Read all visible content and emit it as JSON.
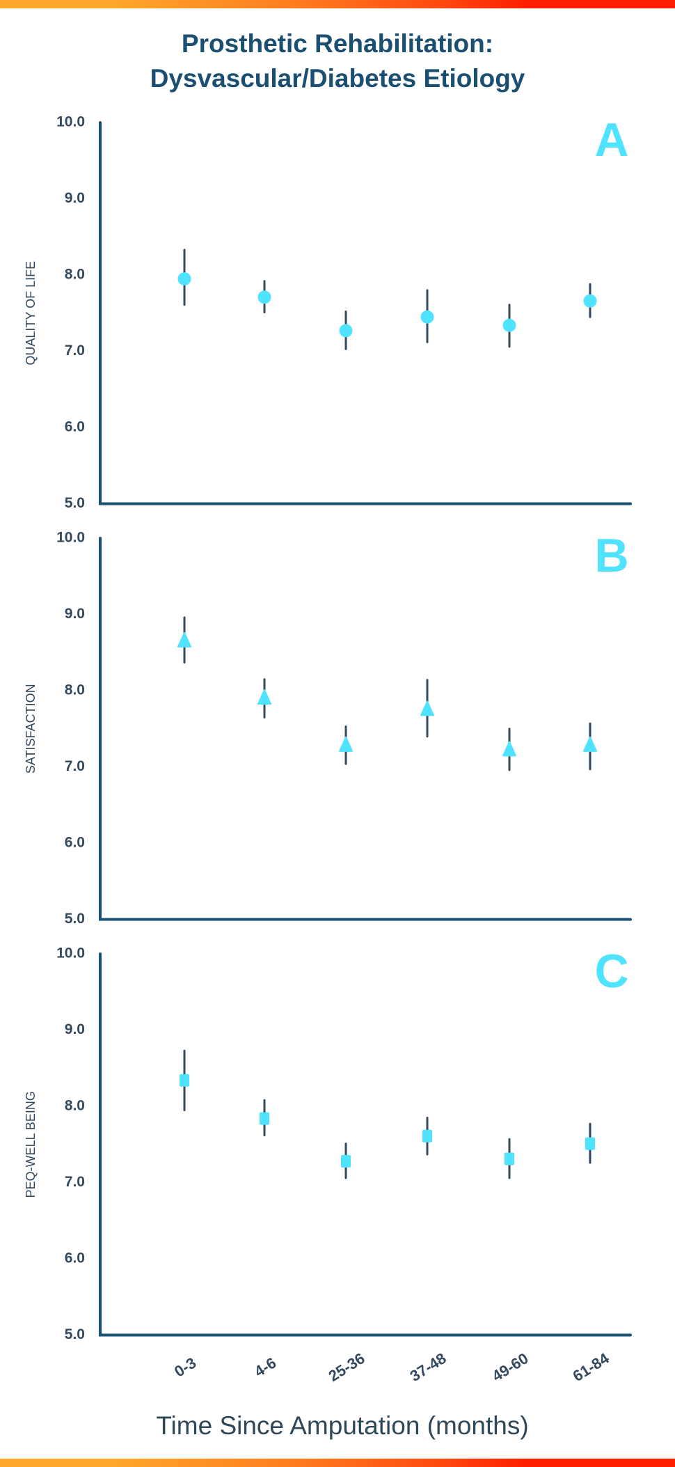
{
  "title": {
    "line1": "Prosthetic Rehabilitation:",
    "line2": "Dysvascular/Diabetes Etiology"
  },
  "colors": {
    "title": "#1b4f72",
    "axis": "#1a5276",
    "tick_label": "#34495e",
    "error_bar": "#34495e",
    "marker": "#50e3ff",
    "panel_letter": "#50e3ff",
    "bar_gradient_start": "#ffa62b",
    "bar_gradient_end": "#ff1e00"
  },
  "x_axis": {
    "title": "Time Since Amputation (months)",
    "categories": [
      "0-3",
      "4-6",
      "25-36",
      "37-48",
      "49-60",
      "61-84"
    ]
  },
  "chart_data": [
    {
      "type": "scatter",
      "panel": "A",
      "title": "",
      "ylabel": "QUALITY OF LIFE",
      "xlabel": "Time Since Amputation (months)",
      "marker": "circle",
      "categories": [
        "0-3",
        "4-6",
        "25-36",
        "37-48",
        "49-60",
        "61-84"
      ],
      "values": [
        7.95,
        7.71,
        7.27,
        7.45,
        7.34,
        7.66
      ],
      "error_low": [
        7.61,
        7.51,
        7.03,
        7.12,
        7.06,
        7.45
      ],
      "error_high": [
        8.33,
        7.92,
        7.52,
        7.8,
        7.61,
        7.88
      ],
      "ylim": [
        5.0,
        10.0
      ],
      "yticks": [
        "5.0",
        "6.0",
        "7.0",
        "8.0",
        "9.0",
        "10.0"
      ],
      "grid": false
    },
    {
      "type": "scatter",
      "panel": "B",
      "title": "",
      "ylabel": "SATISFACTION",
      "xlabel": "Time Since Amputation (months)",
      "marker": "triangle",
      "categories": [
        "0-3",
        "4-6",
        "25-36",
        "37-48",
        "49-60",
        "61-84"
      ],
      "values": [
        8.65,
        7.9,
        7.28,
        7.75,
        7.22,
        7.28
      ],
      "error_low": [
        8.37,
        7.65,
        7.04,
        7.4,
        6.96,
        6.97
      ],
      "error_high": [
        8.96,
        8.15,
        7.53,
        8.14,
        7.5,
        7.57
      ],
      "ylim": [
        5.0,
        10.0
      ],
      "yticks": [
        "5.0",
        "6.0",
        "7.0",
        "8.0",
        "9.0",
        "10.0"
      ],
      "grid": false
    },
    {
      "type": "scatter",
      "panel": "C",
      "title": "",
      "ylabel": "PEQ-WELL BEING",
      "xlabel": "Time Since Amputation (months)",
      "marker": "square",
      "categories": [
        "0-3",
        "4-6",
        "25-36",
        "37-48",
        "49-60",
        "61-84"
      ],
      "values": [
        8.34,
        7.84,
        7.28,
        7.61,
        7.31,
        7.51
      ],
      "error_low": [
        7.95,
        7.62,
        7.06,
        7.37,
        7.06,
        7.26
      ],
      "error_high": [
        8.73,
        8.08,
        7.51,
        7.85,
        7.57,
        7.77
      ],
      "ylim": [
        5.0,
        10.0
      ],
      "yticks": [
        "5.0",
        "6.0",
        "7.0",
        "8.0",
        "9.0",
        "10.0"
      ],
      "grid": false
    }
  ]
}
